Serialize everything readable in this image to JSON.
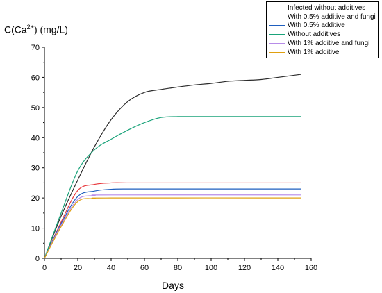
{
  "chart_data": {
    "type": "line",
    "title": "",
    "ylabel": "C(Ca2+) (mg/L)",
    "ylabel_parts": {
      "pre": "C(Ca",
      "sup": "2+",
      "post": ") (mg/L)"
    },
    "xlabel": "Days",
    "xlim": [
      0,
      160
    ],
    "ylim": [
      0,
      70
    ],
    "xticks": [
      "0",
      "20",
      "40",
      "60",
      "80",
      "100",
      "120",
      "140",
      "160"
    ],
    "yticks": [
      "0",
      "10",
      "20",
      "30",
      "40",
      "50",
      "60",
      "70"
    ],
    "grid": false,
    "legend_position": "top-right",
    "series": [
      {
        "name": "Infected without additives",
        "color": "#2b2b2b",
        "x": [
          0,
          10,
          20,
          30,
          40,
          50,
          60,
          70,
          80,
          90,
          100,
          110,
          120,
          130,
          140,
          154
        ],
        "y": [
          0,
          14,
          26,
          37,
          46,
          52,
          55,
          56,
          56.8,
          57.5,
          58,
          58.7,
          59,
          59.3,
          60,
          61
        ]
      },
      {
        "name": "With 0.5% additive and fungi",
        "color": "#e8383d",
        "x": [
          0,
          10,
          20,
          30,
          40,
          50,
          60,
          154
        ],
        "y": [
          0,
          12,
          22.5,
          24.5,
          25,
          25,
          25,
          25
        ]
      },
      {
        "name": "With 0.5% additive",
        "color": "#1f5fbf",
        "x": [
          0,
          10,
          20,
          30,
          40,
          50,
          60,
          154
        ],
        "y": [
          0,
          11.5,
          20.5,
          22.3,
          22.9,
          23,
          23,
          23
        ]
      },
      {
        "name": "Without additives",
        "color": "#1aa37a",
        "x": [
          0,
          10,
          20,
          30,
          40,
          50,
          60,
          70,
          80,
          90,
          154
        ],
        "y": [
          0,
          15,
          29,
          36,
          39.5,
          42.5,
          45,
          46.7,
          47,
          47,
          47
        ]
      },
      {
        "name": "With 1% additive and fungi",
        "color": "#b78ce8",
        "x": [
          0,
          10,
          20,
          30,
          40,
          154
        ],
        "y": [
          0,
          11,
          19.5,
          20.8,
          21,
          21
        ]
      },
      {
        "name": "With 1% additive",
        "color": "#e0a010",
        "x": [
          0,
          10,
          20,
          30,
          40,
          154
        ],
        "y": [
          0,
          10.5,
          18.8,
          19.8,
          20,
          20
        ]
      }
    ]
  }
}
